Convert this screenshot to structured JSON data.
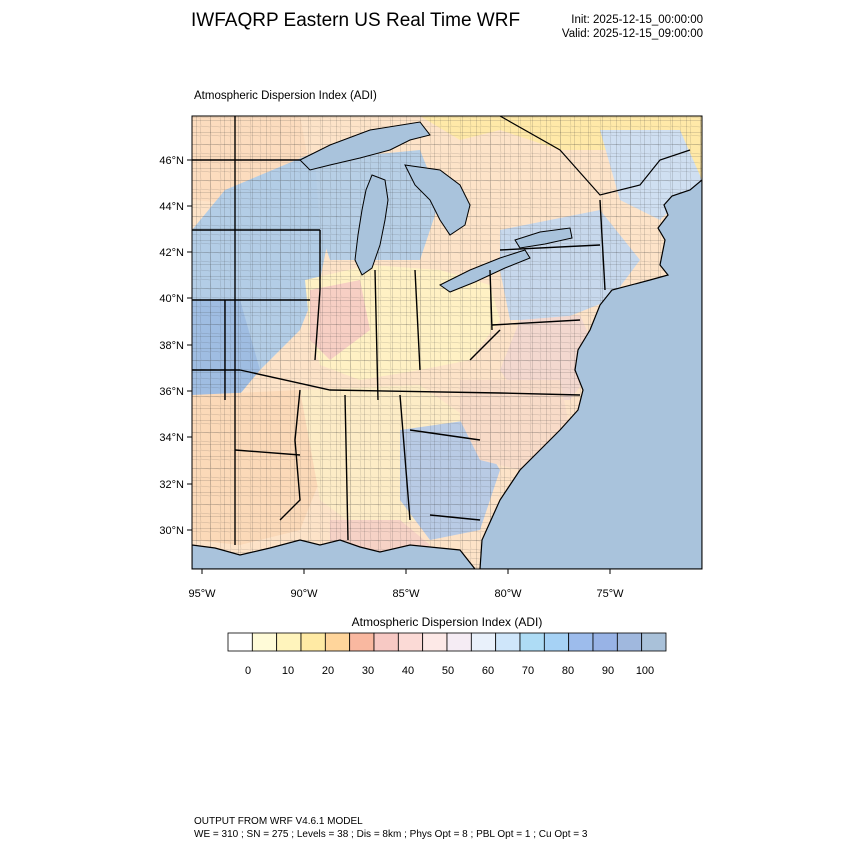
{
  "header": {
    "title": "IWFAQRP Eastern US Real Time WRF",
    "init": "Init: 2025-12-15_00:00:00",
    "valid": "Valid: 2025-12-15_09:00:00"
  },
  "panel": {
    "title": "Atmospheric Dispersion Index   (ADI)"
  },
  "map": {
    "lat_labels": [
      "46°N",
      "44°N",
      "42°N",
      "40°N",
      "38°N",
      "36°N",
      "34°N",
      "32°N",
      "30°N"
    ],
    "lon_labels": [
      "95°W",
      "90°W",
      "85°W",
      "80°W",
      "75°W"
    ],
    "ocean_color": "#a9c3dc",
    "lake_color": "#a9c3dc"
  },
  "colorbar": {
    "title": "Atmospheric Dispersion Index  (ADI)",
    "tick_labels": [
      "0",
      "10",
      "20",
      "30",
      "40",
      "50",
      "60",
      "70",
      "80",
      "90",
      "100"
    ],
    "colors": [
      "#ffffff",
      "#fffbd8",
      "#fff4bc",
      "#ffeaa4",
      "#ffd59b",
      "#f9b8a0",
      "#f7c9c4",
      "#fbdad6",
      "#fde9e7",
      "#f5ecf4",
      "#e9f1fb",
      "#cfe6fa",
      "#aedcf5",
      "#a6d2f5",
      "#9dbcec",
      "#98b3e6",
      "#a0b8de",
      "#a9c1d9"
    ]
  },
  "footer": {
    "line1": "OUTPUT FROM WRF V4.6.1 MODEL",
    "line2": "WE = 310 ; SN = 275 ; Levels = 38 ; Dis = 8km ; Phys Opt = 8 ; PBL Opt = 1 ; Cu Opt = 3"
  }
}
